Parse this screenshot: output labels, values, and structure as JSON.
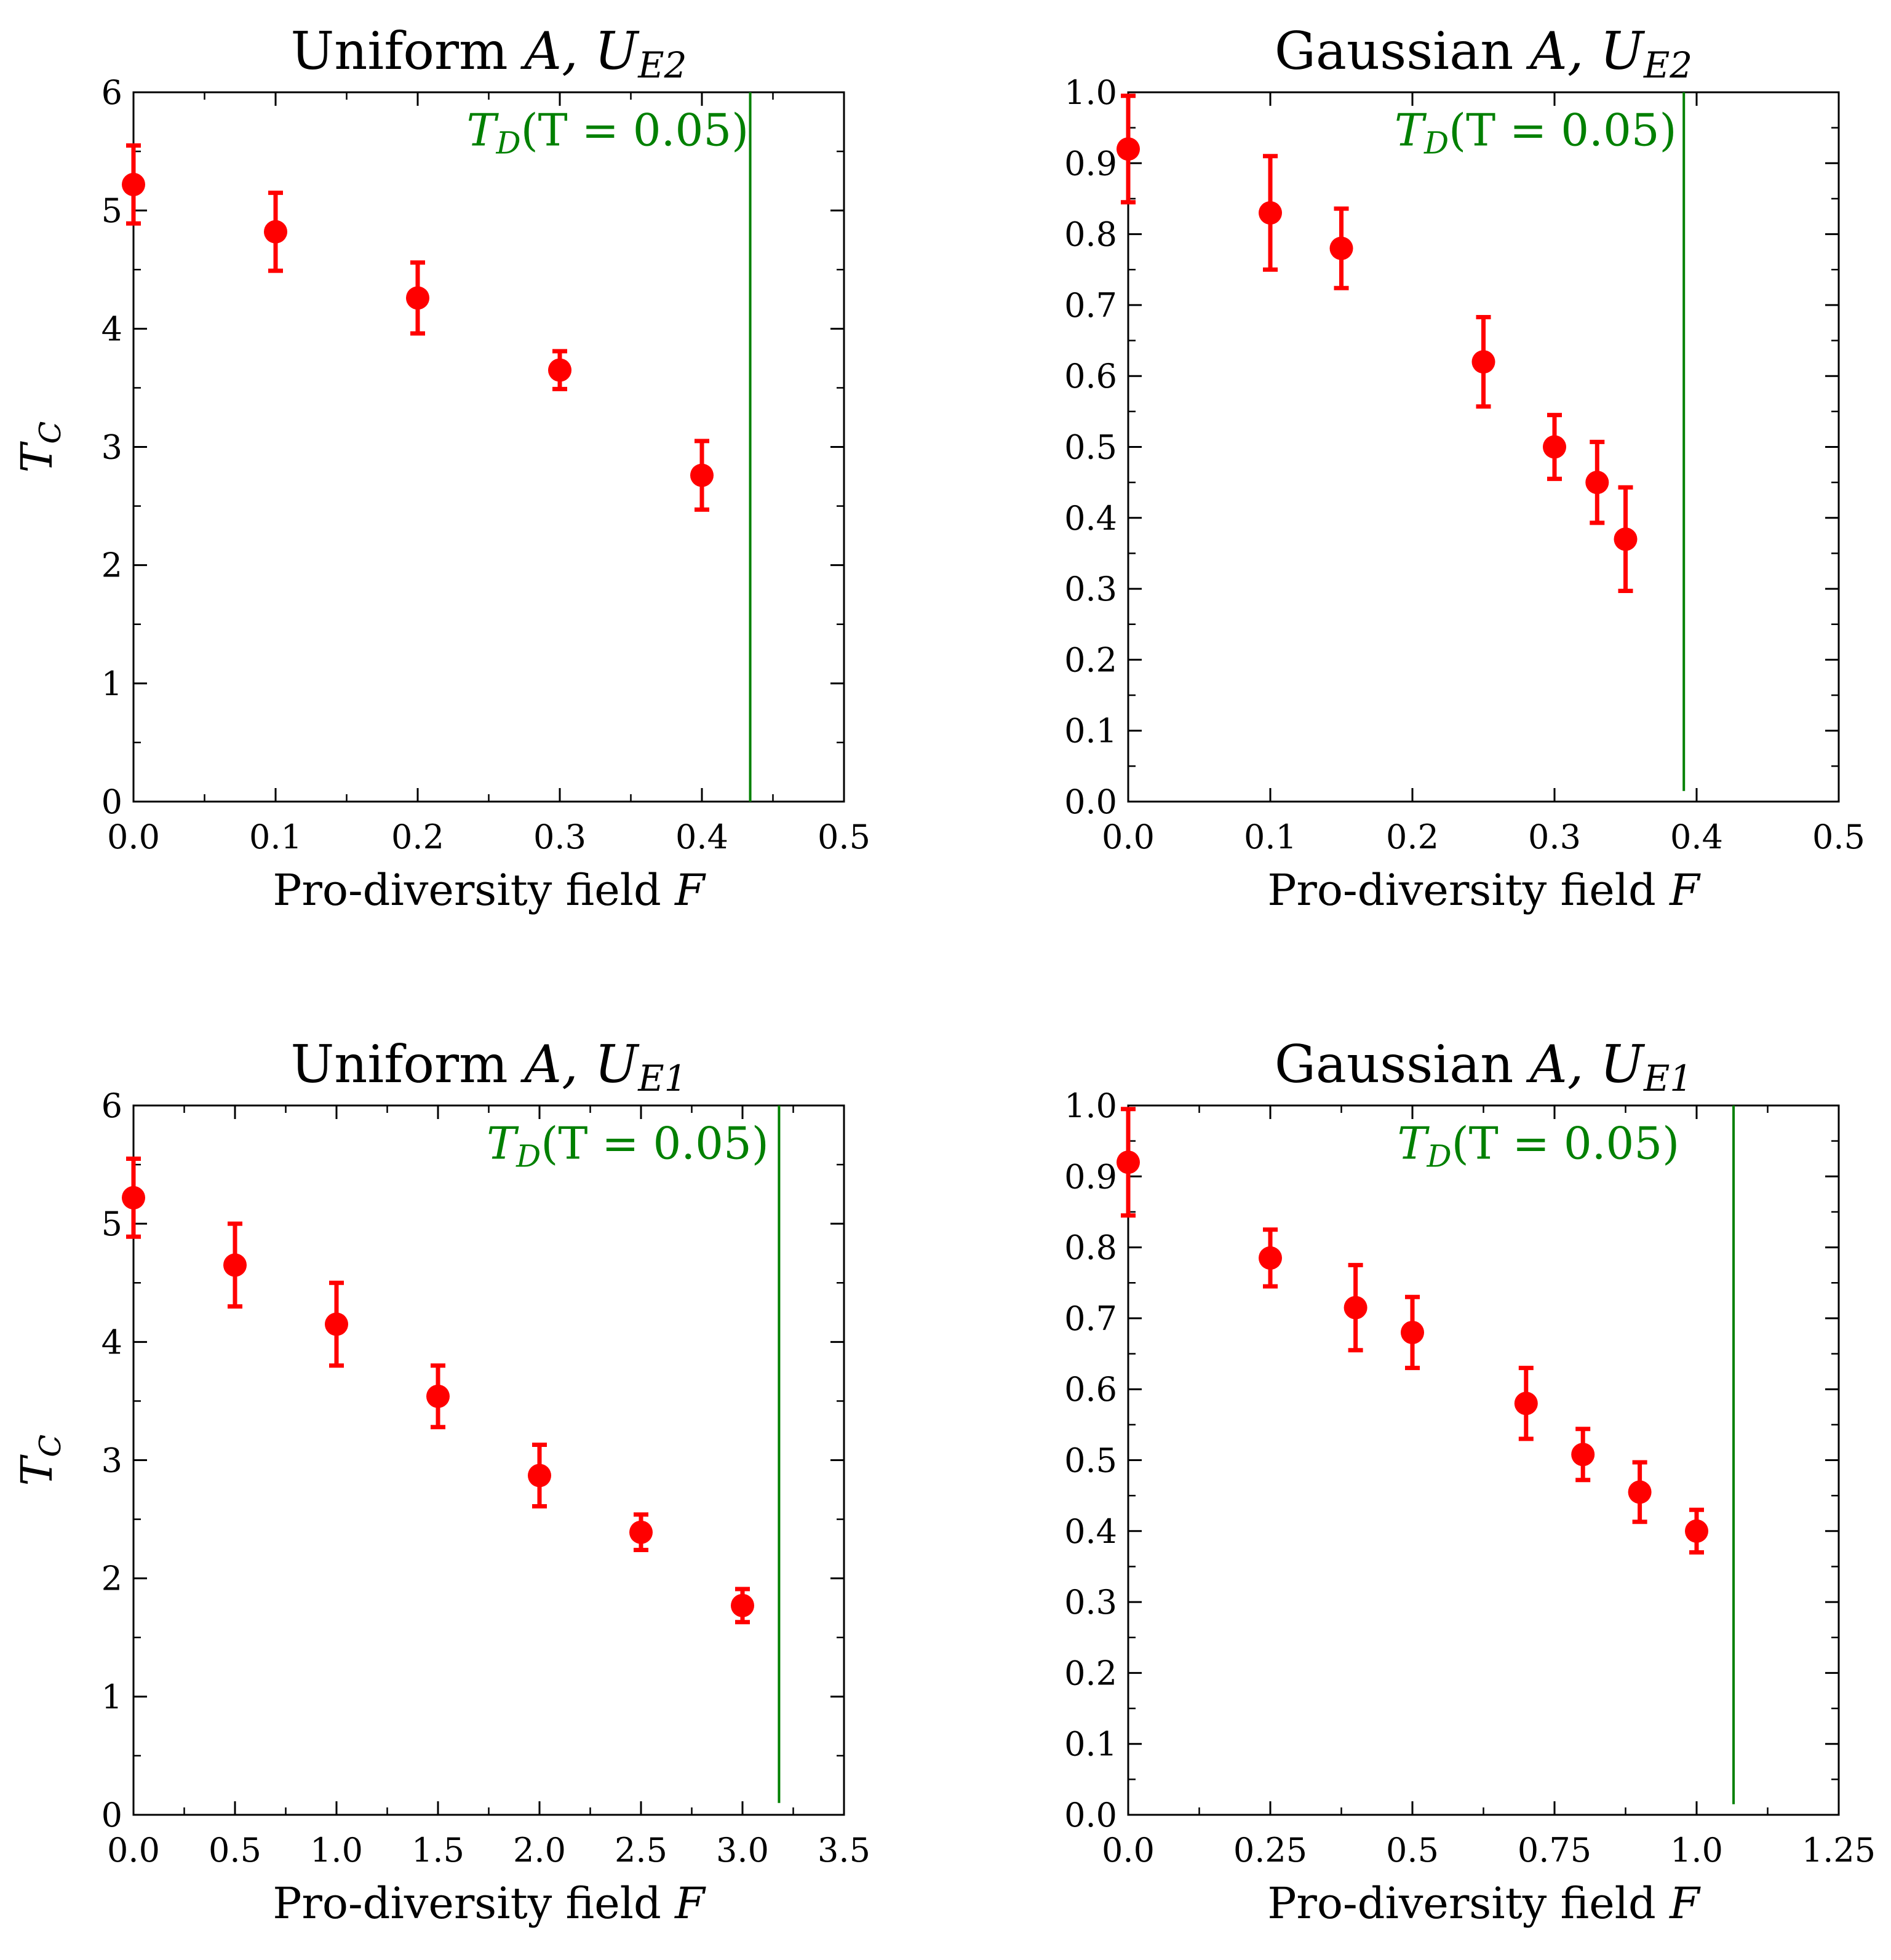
{
  "figure": {
    "accent_point": "#ff0000",
    "accent_line": "#008000"
  },
  "chart_data": [
    {
      "type": "scatter",
      "title": "Uniform A, U_E2",
      "title_parts": {
        "lead": "Uniform",
        "var": "A,",
        "sym": "U",
        "sub": "E2"
      },
      "xlabel": "Pro-diversity field F",
      "xlabel_parts": {
        "text": "Pro-diversity field",
        "var": "F"
      },
      "ylabel": "T_C",
      "ylabel_parts": {
        "sym": "T",
        "sub": "C"
      },
      "xlim": [
        0,
        0.5
      ],
      "ylim": [
        0,
        6
      ],
      "xticks": [
        "0.0",
        "0.1",
        "0.2",
        "0.3",
        "0.4",
        "0.5"
      ],
      "yticks": [
        "0",
        "1",
        "2",
        "3",
        "4",
        "5",
        "6"
      ],
      "x": [
        0.0,
        0.1,
        0.2,
        0.3,
        0.4
      ],
      "y": [
        5.22,
        4.82,
        4.26,
        3.65,
        2.76
      ],
      "yerr": [
        0.33,
        0.33,
        0.3,
        0.16,
        0.29
      ],
      "vline": {
        "x": 0.434,
        "y_from": 0.0,
        "y_to": 6.0,
        "label": "T_D(T = 0.05)",
        "label_parts": {
          "sym": "T",
          "sub": "D",
          "rest": "(T = 0.05)"
        },
        "label_x": 0.433,
        "label_y": 5.55
      }
    },
    {
      "type": "scatter",
      "title": "Gaussian A, U_E2",
      "title_parts": {
        "lead": "Gaussian",
        "var": "A,",
        "sym": "U",
        "sub": "E2"
      },
      "xlabel": "Pro-diversity field F",
      "xlabel_parts": {
        "text": "Pro-diversity field",
        "var": "F"
      },
      "ylabel": "T_C",
      "ylabel_parts": {
        "sym": "T",
        "sub": "C"
      },
      "xlim": [
        0,
        0.5
      ],
      "ylim": [
        0,
        1.0
      ],
      "xticks": [
        "0.0",
        "0.1",
        "0.2",
        "0.3",
        "0.4",
        "0.5"
      ],
      "yticks": [
        "0.0",
        "0.1",
        "0.2",
        "0.3",
        "0.4",
        "0.5",
        "0.6",
        "0.7",
        "0.8",
        "0.9",
        "1.0"
      ],
      "x": [
        0.0,
        0.1,
        0.15,
        0.25,
        0.3,
        0.33,
        0.35
      ],
      "y": [
        0.92,
        0.83,
        0.78,
        0.62,
        0.5,
        0.45,
        0.37
      ],
      "yerr": [
        0.075,
        0.08,
        0.056,
        0.063,
        0.045,
        0.057,
        0.073
      ],
      "vline": {
        "x": 0.391,
        "y_from": 0.015,
        "y_to": 1.0,
        "label": "T_D(T = 0.05)",
        "label_parts": {
          "sym": "T",
          "sub": "D",
          "rest": "(T = 0.05)"
        },
        "label_x": 0.386,
        "label_y": 0.925
      }
    },
    {
      "type": "scatter",
      "title": "Uniform A, U_E1",
      "title_parts": {
        "lead": "Uniform",
        "var": "A,",
        "sym": "U",
        "sub": "E1"
      },
      "xlabel": "Pro-diversity field F",
      "xlabel_parts": {
        "text": "Pro-diversity field",
        "var": "F"
      },
      "ylabel": "T_C",
      "ylabel_parts": {
        "sym": "T",
        "sub": "C"
      },
      "xlim": [
        0,
        3.5
      ],
      "ylim": [
        0,
        6
      ],
      "xticks": [
        "0.0",
        "0.5",
        "1.0",
        "1.5",
        "2.0",
        "2.5",
        "3.0",
        "3.5"
      ],
      "yticks": [
        "0",
        "1",
        "2",
        "3",
        "4",
        "5",
        "6"
      ],
      "x": [
        0.0,
        0.5,
        1.0,
        1.5,
        2.0,
        2.5,
        3.0
      ],
      "y": [
        5.22,
        4.65,
        4.15,
        3.54,
        2.87,
        2.39,
        1.77
      ],
      "yerr": [
        0.33,
        0.35,
        0.35,
        0.26,
        0.26,
        0.15,
        0.14
      ],
      "vline": {
        "x": 3.18,
        "y_from": 0.1,
        "y_to": 6.0,
        "label": "T_D(T = 0.05)",
        "label_parts": {
          "sym": "T",
          "sub": "D",
          "rest": "(T = 0.05)"
        },
        "label_x": 3.13,
        "label_y": 5.55
      }
    },
    {
      "type": "scatter",
      "title": "Gaussian A, U_E1",
      "title_parts": {
        "lead": "Gaussian",
        "var": "A,",
        "sym": "U",
        "sub": "E1"
      },
      "xlabel": "Pro-diversity field F",
      "xlabel_parts": {
        "text": "Pro-diversity field",
        "var": "F"
      },
      "ylabel": "T_C",
      "ylabel_parts": {
        "sym": "T",
        "sub": "C"
      },
      "xlim": [
        0,
        1.25
      ],
      "ylim": [
        0,
        1.0
      ],
      "xticks": [
        "0.0",
        "0.25",
        "0.5",
        "0.75",
        "1.0",
        "1.25"
      ],
      "yticks": [
        "0.0",
        "0.1",
        "0.2",
        "0.3",
        "0.4",
        "0.5",
        "0.6",
        "0.7",
        "0.8",
        "0.9",
        "1.0"
      ],
      "x": [
        0.0,
        0.25,
        0.4,
        0.5,
        0.7,
        0.8,
        0.9,
        1.0
      ],
      "y": [
        0.92,
        0.785,
        0.715,
        0.68,
        0.58,
        0.508,
        0.455,
        0.4
      ],
      "yerr": [
        0.075,
        0.04,
        0.06,
        0.05,
        0.05,
        0.036,
        0.042,
        0.03
      ],
      "vline": {
        "x": 1.065,
        "y_from": 0.015,
        "y_to": 1.0,
        "label": "T_D(T = 0.05)",
        "label_parts": {
          "sym": "T",
          "sub": "D",
          "rest": "(T = 0.05)"
        },
        "label_x": 0.97,
        "label_y": 0.925
      }
    }
  ]
}
